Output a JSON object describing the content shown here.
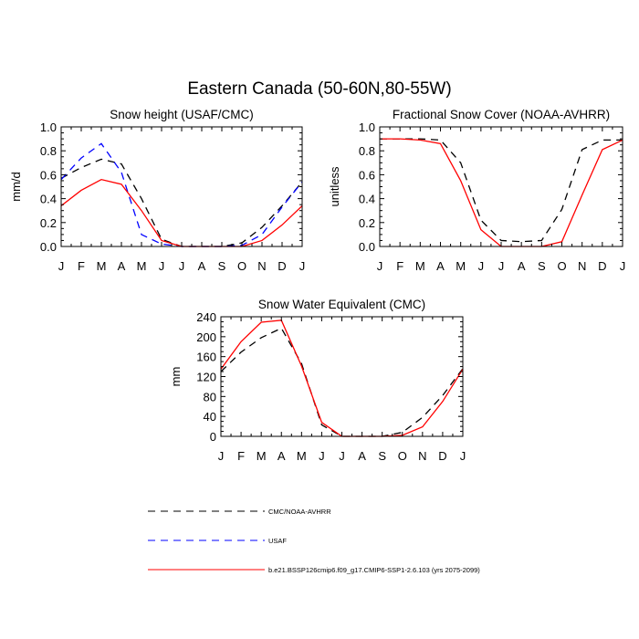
{
  "figure_title": "Eastern Canada (50-60N,80-55W)",
  "months": [
    "J",
    "F",
    "M",
    "A",
    "M",
    "J",
    "J",
    "A",
    "S",
    "O",
    "N",
    "D",
    "J"
  ],
  "legend": [
    {
      "label": "CMC/NOAA-AVHRR",
      "color": "#000000",
      "dash": "dashed"
    },
    {
      "label": "USAF",
      "color": "#0000ff",
      "dash": "dashed"
    },
    {
      "label": "b.e21.BSSP126cmip6.f09_g17.CMIP6-SSP1-2.6.103 (yrs 2075-2099)",
      "color": "#ff0000",
      "dash": "solid"
    }
  ],
  "chart_data": [
    {
      "type": "line",
      "title": "Snow height (USAF/CMC)",
      "ylabel": "mm/d",
      "xlabel": "",
      "ylim": [
        0,
        1.0
      ],
      "yticks": [
        "0.0",
        "0.2",
        "0.4",
        "0.6",
        "0.8",
        "1.0"
      ],
      "ytick_values": [
        0,
        0.2,
        0.4,
        0.6,
        0.8,
        1.0
      ],
      "x": [
        "J",
        "F",
        "M",
        "A",
        "M",
        "J",
        "J",
        "A",
        "S",
        "O",
        "N",
        "D",
        "J"
      ],
      "series": [
        {
          "name": "CMC/NOAA-AVHRR",
          "color": "#000000",
          "dash": "dashed",
          "values": [
            0.57,
            0.66,
            0.73,
            0.69,
            0.4,
            0.06,
            0.0,
            0.0,
            0.0,
            0.03,
            0.16,
            0.34,
            0.54
          ]
        },
        {
          "name": "USAF",
          "color": "#0000ff",
          "dash": "dashed",
          "values": [
            0.56,
            0.74,
            0.86,
            0.62,
            0.1,
            0.02,
            0.0,
            0.0,
            0.0,
            0.01,
            0.1,
            0.33,
            0.54
          ]
        },
        {
          "name": "b.e21.BSSP126cmip6.f09_g17.CMIP6-SSP1-2.6.103 (yrs 2075-2099)",
          "color": "#ff0000",
          "dash": "solid",
          "values": [
            0.34,
            0.47,
            0.56,
            0.52,
            0.3,
            0.05,
            0.0,
            0.0,
            0.0,
            0.0,
            0.05,
            0.18,
            0.34
          ]
        }
      ]
    },
    {
      "type": "line",
      "title": "Fractional Snow Cover (NOAA-AVHRR)",
      "ylabel": "unitless",
      "xlabel": "",
      "ylim": [
        0,
        1.0
      ],
      "yticks": [
        "0.0",
        "0.2",
        "0.4",
        "0.6",
        "0.8",
        "1.0"
      ],
      "ytick_values": [
        0,
        0.2,
        0.4,
        0.6,
        0.8,
        1.0
      ],
      "x": [
        "J",
        "F",
        "M",
        "A",
        "M",
        "J",
        "J",
        "A",
        "S",
        "O",
        "N",
        "D",
        "J"
      ],
      "series": [
        {
          "name": "CMC/NOAA-AVHRR",
          "color": "#000000",
          "dash": "dashed",
          "values": [
            0.9,
            0.9,
            0.9,
            0.89,
            0.7,
            0.22,
            0.05,
            0.04,
            0.05,
            0.31,
            0.81,
            0.89,
            0.89
          ]
        },
        {
          "name": "b.e21.BSSP126cmip6.f09_g17.CMIP6-SSP1-2.6.103 (yrs 2075-2099)",
          "color": "#ff0000",
          "dash": "solid",
          "values": [
            0.9,
            0.9,
            0.89,
            0.86,
            0.55,
            0.14,
            0.0,
            0.0,
            0.0,
            0.04,
            0.43,
            0.81,
            0.89
          ]
        }
      ]
    },
    {
      "type": "line",
      "title": "Snow Water Equivalent (CMC)",
      "ylabel": "mm",
      "xlabel": "",
      "ylim": [
        0,
        240
      ],
      "yticks": [
        "0",
        "40",
        "80",
        "120",
        "160",
        "200",
        "240"
      ],
      "ytick_values": [
        0,
        40,
        80,
        120,
        160,
        200,
        240
      ],
      "x": [
        "J",
        "F",
        "M",
        "A",
        "M",
        "J",
        "J",
        "A",
        "S",
        "O",
        "N",
        "D",
        "J"
      ],
      "series": [
        {
          "name": "CMC/NOAA-AVHRR",
          "color": "#000000",
          "dash": "dashed",
          "values": [
            130,
            169,
            198,
            217,
            146,
            23,
            0,
            0,
            0,
            8,
            38,
            82,
            136
          ]
        },
        {
          "name": "b.e21.BSSP126cmip6.f09_g17.CMIP6-SSP1-2.6.103 (yrs 2075-2099)",
          "color": "#ff0000",
          "dash": "solid",
          "values": [
            135,
            190,
            229,
            233,
            141,
            28,
            0,
            0,
            0,
            2,
            19,
            70,
            135
          ]
        }
      ]
    }
  ]
}
